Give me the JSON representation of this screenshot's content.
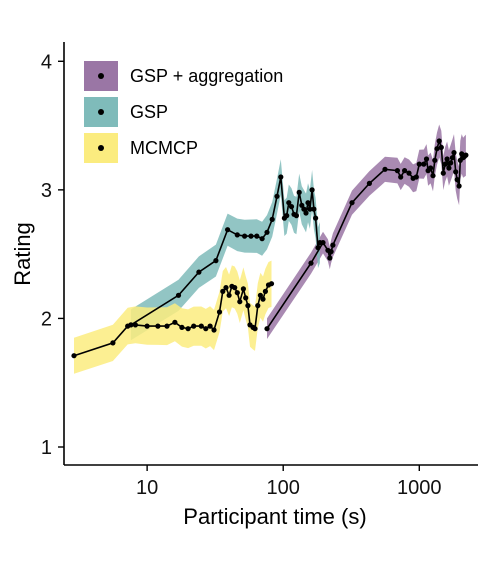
{
  "chart_data": {
    "type": "line",
    "title": "",
    "xlabel": "Participant time (s)",
    "ylabel": "Rating",
    "xscale": "log",
    "xlim": [
      2.45,
      2700
    ],
    "ylim": [
      0.86,
      4.15
    ],
    "xticks": [
      10,
      100,
      1000
    ],
    "xtick_labels": [
      "10",
      "100",
      "1000"
    ],
    "yticks": [
      1,
      2,
      3,
      4
    ],
    "ytick_labels": [
      "1",
      "2",
      "3",
      "4"
    ],
    "grid": false,
    "legend": {
      "position": "top-left"
    },
    "series": [
      {
        "name": "GSP + aggregation",
        "color": "#9a76a5",
        "points": [
          [
            76,
            1.92
          ],
          [
            160,
            2.43
          ],
          [
            196,
            2.59
          ],
          [
            213,
            2.53
          ],
          [
            220,
            2.47
          ],
          [
            225,
            2.52
          ],
          [
            232,
            2.57
          ],
          [
            320,
            2.9
          ],
          [
            430,
            3.05
          ],
          [
            560,
            3.16
          ],
          [
            690,
            3.15
          ],
          [
            730,
            3.1
          ],
          [
            780,
            3.15
          ],
          [
            840,
            3.13
          ],
          [
            900,
            3.09
          ],
          [
            950,
            3.1
          ],
          [
            1000,
            3.2
          ],
          [
            1080,
            3.2
          ],
          [
            1130,
            3.24
          ],
          [
            1160,
            3.15
          ],
          [
            1210,
            3.17
          ],
          [
            1260,
            3.11
          ],
          [
            1300,
            3.23
          ],
          [
            1350,
            3.32
          ],
          [
            1400,
            3.38
          ],
          [
            1450,
            3.33
          ],
          [
            1500,
            3.13
          ],
          [
            1550,
            3.2
          ],
          [
            1600,
            3.24
          ],
          [
            1650,
            3.17
          ],
          [
            1700,
            3.21
          ],
          [
            1750,
            3.25
          ],
          [
            1800,
            3.29
          ],
          [
            1850,
            3.14
          ],
          [
            1900,
            3.08
          ],
          [
            1960,
            3.03
          ],
          [
            2000,
            3.23
          ],
          [
            2050,
            3.28
          ],
          [
            2100,
            3.25
          ],
          [
            2150,
            3.26
          ],
          [
            2200,
            3.27
          ]
        ],
        "band": [
          0.08,
          0.16
        ]
      },
      {
        "name": "GSP",
        "color": "#7fbbba",
        "points": [
          [
            7.6,
            1.95
          ],
          [
            17,
            2.18
          ],
          [
            24,
            2.36
          ],
          [
            32,
            2.45
          ],
          [
            39,
            2.69
          ],
          [
            46,
            2.65
          ],
          [
            52,
            2.64
          ],
          [
            58,
            2.64
          ],
          [
            64,
            2.64
          ],
          [
            70,
            2.62
          ],
          [
            76,
            2.67
          ],
          [
            83,
            2.77
          ],
          [
            90,
            2.95
          ],
          [
            96,
            3.1
          ],
          [
            102,
            2.78
          ],
          [
            106,
            2.8
          ],
          [
            110,
            2.9
          ],
          [
            115,
            2.87
          ],
          [
            120,
            2.81
          ],
          [
            125,
            2.8
          ],
          [
            131,
            2.98
          ],
          [
            137,
            2.88
          ],
          [
            142,
            2.85
          ],
          [
            147,
            2.82
          ],
          [
            152,
            2.9
          ],
          [
            157,
            2.85
          ],
          [
            163,
            3.0
          ],
          [
            168,
            2.85
          ],
          [
            173,
            2.78
          ],
          [
            180,
            2.55
          ],
          [
            186,
            2.59
          ]
        ],
        "band": [
          0.12,
          0.16
        ]
      },
      {
        "name": "MCMCP",
        "color": "#fbec7f",
        "points": [
          [
            2.9,
            1.71
          ],
          [
            5.6,
            1.81
          ],
          [
            7.2,
            1.94
          ],
          [
            8.2,
            1.95
          ],
          [
            10,
            1.94
          ],
          [
            12,
            1.94
          ],
          [
            14,
            1.94
          ],
          [
            16,
            1.97
          ],
          [
            18,
            1.93
          ],
          [
            20,
            1.92
          ],
          [
            22,
            1.94
          ],
          [
            25,
            1.94
          ],
          [
            27,
            1.92
          ],
          [
            29,
            1.94
          ],
          [
            31,
            1.91
          ],
          [
            34,
            2.05
          ],
          [
            36,
            2.21
          ],
          [
            38,
            2.24
          ],
          [
            40,
            2.18
          ],
          [
            42,
            2.25
          ],
          [
            44,
            2.24
          ],
          [
            46,
            2.2
          ],
          [
            48,
            2.13
          ],
          [
            51,
            2.23
          ],
          [
            53,
            2.16
          ],
          [
            55,
            2.1
          ],
          [
            57,
            1.95
          ],
          [
            60,
            1.93
          ],
          [
            62,
            1.92
          ],
          [
            65,
            2.1
          ],
          [
            68,
            2.18
          ],
          [
            71,
            2.15
          ],
          [
            74,
            2.21
          ],
          [
            78,
            2.26
          ],
          [
            82,
            2.27
          ]
        ],
        "band": [
          0.14,
          0.18
        ]
      }
    ]
  }
}
